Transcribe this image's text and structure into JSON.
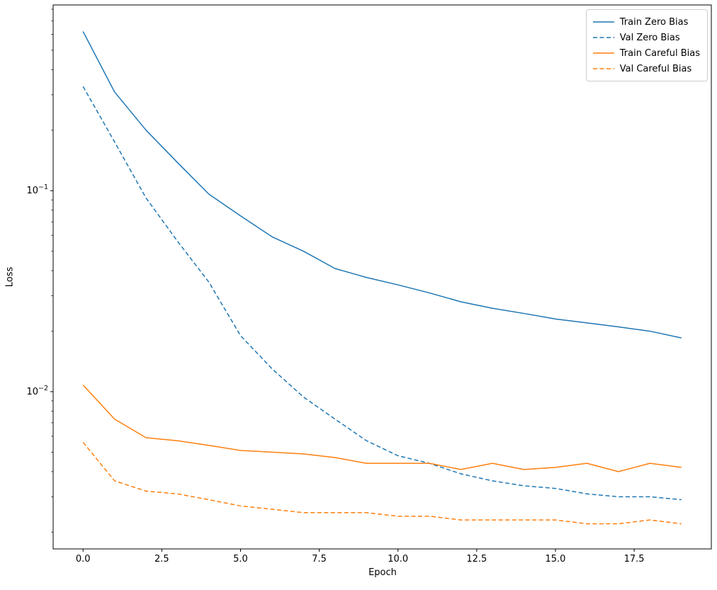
{
  "chart_data": {
    "type": "line",
    "title": "",
    "xlabel": "Epoch",
    "ylabel": "Loss",
    "yscale": "log",
    "grid": false,
    "legend_position": "upper right",
    "x": [
      0,
      1,
      2,
      3,
      4,
      5,
      6,
      7,
      8,
      9,
      10,
      11,
      12,
      13,
      14,
      15,
      16,
      17,
      18,
      19
    ],
    "xlim": [
      -0.95,
      19.95
    ],
    "ylim": [
      0.00165,
      0.84
    ],
    "x_ticks": [
      {
        "value": 0,
        "label": "0.0"
      },
      {
        "value": 2.5,
        "label": "2.5"
      },
      {
        "value": 5,
        "label": "5.0"
      },
      {
        "value": 7.5,
        "label": "7.5"
      },
      {
        "value": 10,
        "label": "10.0"
      },
      {
        "value": 12.5,
        "label": "12.5"
      },
      {
        "value": 15,
        "label": "15.0"
      },
      {
        "value": 17.5,
        "label": "17.5"
      }
    ],
    "y_ticks": [
      {
        "value": 0.1,
        "base": "10",
        "exponent": "−1"
      },
      {
        "value": 0.01,
        "base": "10",
        "exponent": "−2"
      }
    ],
    "series": [
      {
        "id": "train-zero-bias",
        "name": "Train Zero Bias",
        "color": "#1f77b4",
        "style": "solid",
        "values": [
          0.62,
          0.31,
          0.2,
          0.138,
          0.096,
          0.075,
          0.059,
          0.05,
          0.041,
          0.037,
          0.034,
          0.031,
          0.028,
          0.026,
          0.0245,
          0.023,
          0.022,
          0.021,
          0.02,
          0.0185
        ]
      },
      {
        "id": "val-zero-bias",
        "name": "Val Zero Bias",
        "color": "#1f77b4",
        "style": "dashed",
        "values": [
          0.33,
          0.175,
          0.092,
          0.056,
          0.035,
          0.019,
          0.013,
          0.0094,
          0.0073,
          0.0057,
          0.0048,
          0.0044,
          0.0039,
          0.0036,
          0.0034,
          0.0033,
          0.0031,
          0.003,
          0.003,
          0.0029
        ]
      },
      {
        "id": "train-careful-bias",
        "name": "Train Careful Bias",
        "color": "#ff7f0e",
        "style": "solid",
        "values": [
          0.0108,
          0.0073,
          0.0059,
          0.0057,
          0.0054,
          0.0051,
          0.005,
          0.0049,
          0.0047,
          0.0044,
          0.0044,
          0.0044,
          0.0041,
          0.0044,
          0.0041,
          0.0042,
          0.0044,
          0.004,
          0.0044,
          0.0042
        ]
      },
      {
        "id": "val-careful-bias",
        "name": "Val Careful Bias",
        "color": "#ff7f0e",
        "style": "dashed",
        "values": [
          0.0056,
          0.0036,
          0.0032,
          0.0031,
          0.0029,
          0.0027,
          0.0026,
          0.0025,
          0.0025,
          0.0025,
          0.0024,
          0.0024,
          0.0023,
          0.0023,
          0.0023,
          0.0023,
          0.0022,
          0.0022,
          0.0023,
          0.0022
        ]
      }
    ]
  }
}
